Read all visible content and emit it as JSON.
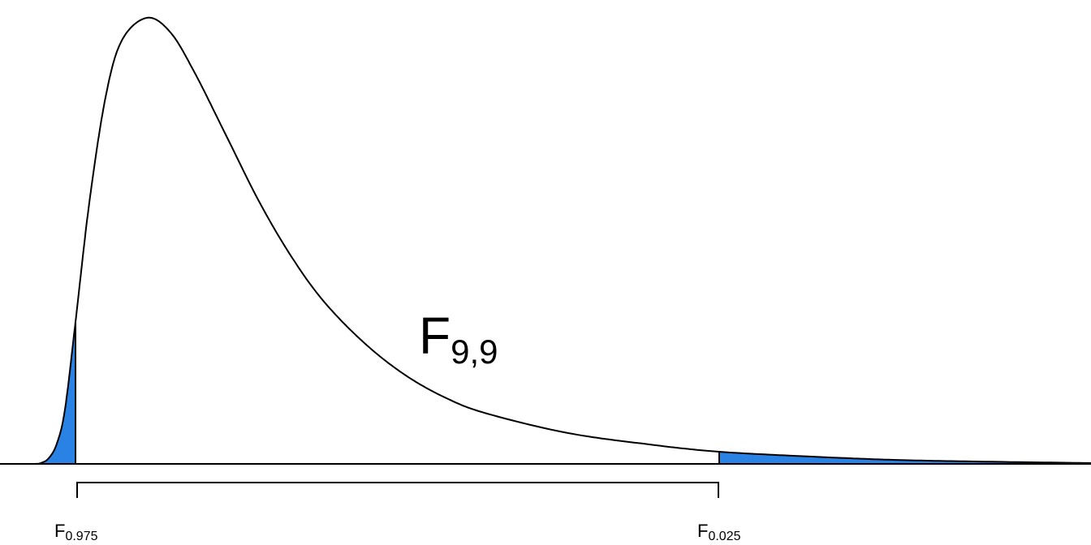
{
  "distribution_label": {
    "symbol": "F",
    "subscript": "9,9"
  },
  "lower_critical": {
    "symbol": "F",
    "subscript": "0.975"
  },
  "upper_critical": {
    "symbol": "F",
    "subscript": "0.025"
  }
}
